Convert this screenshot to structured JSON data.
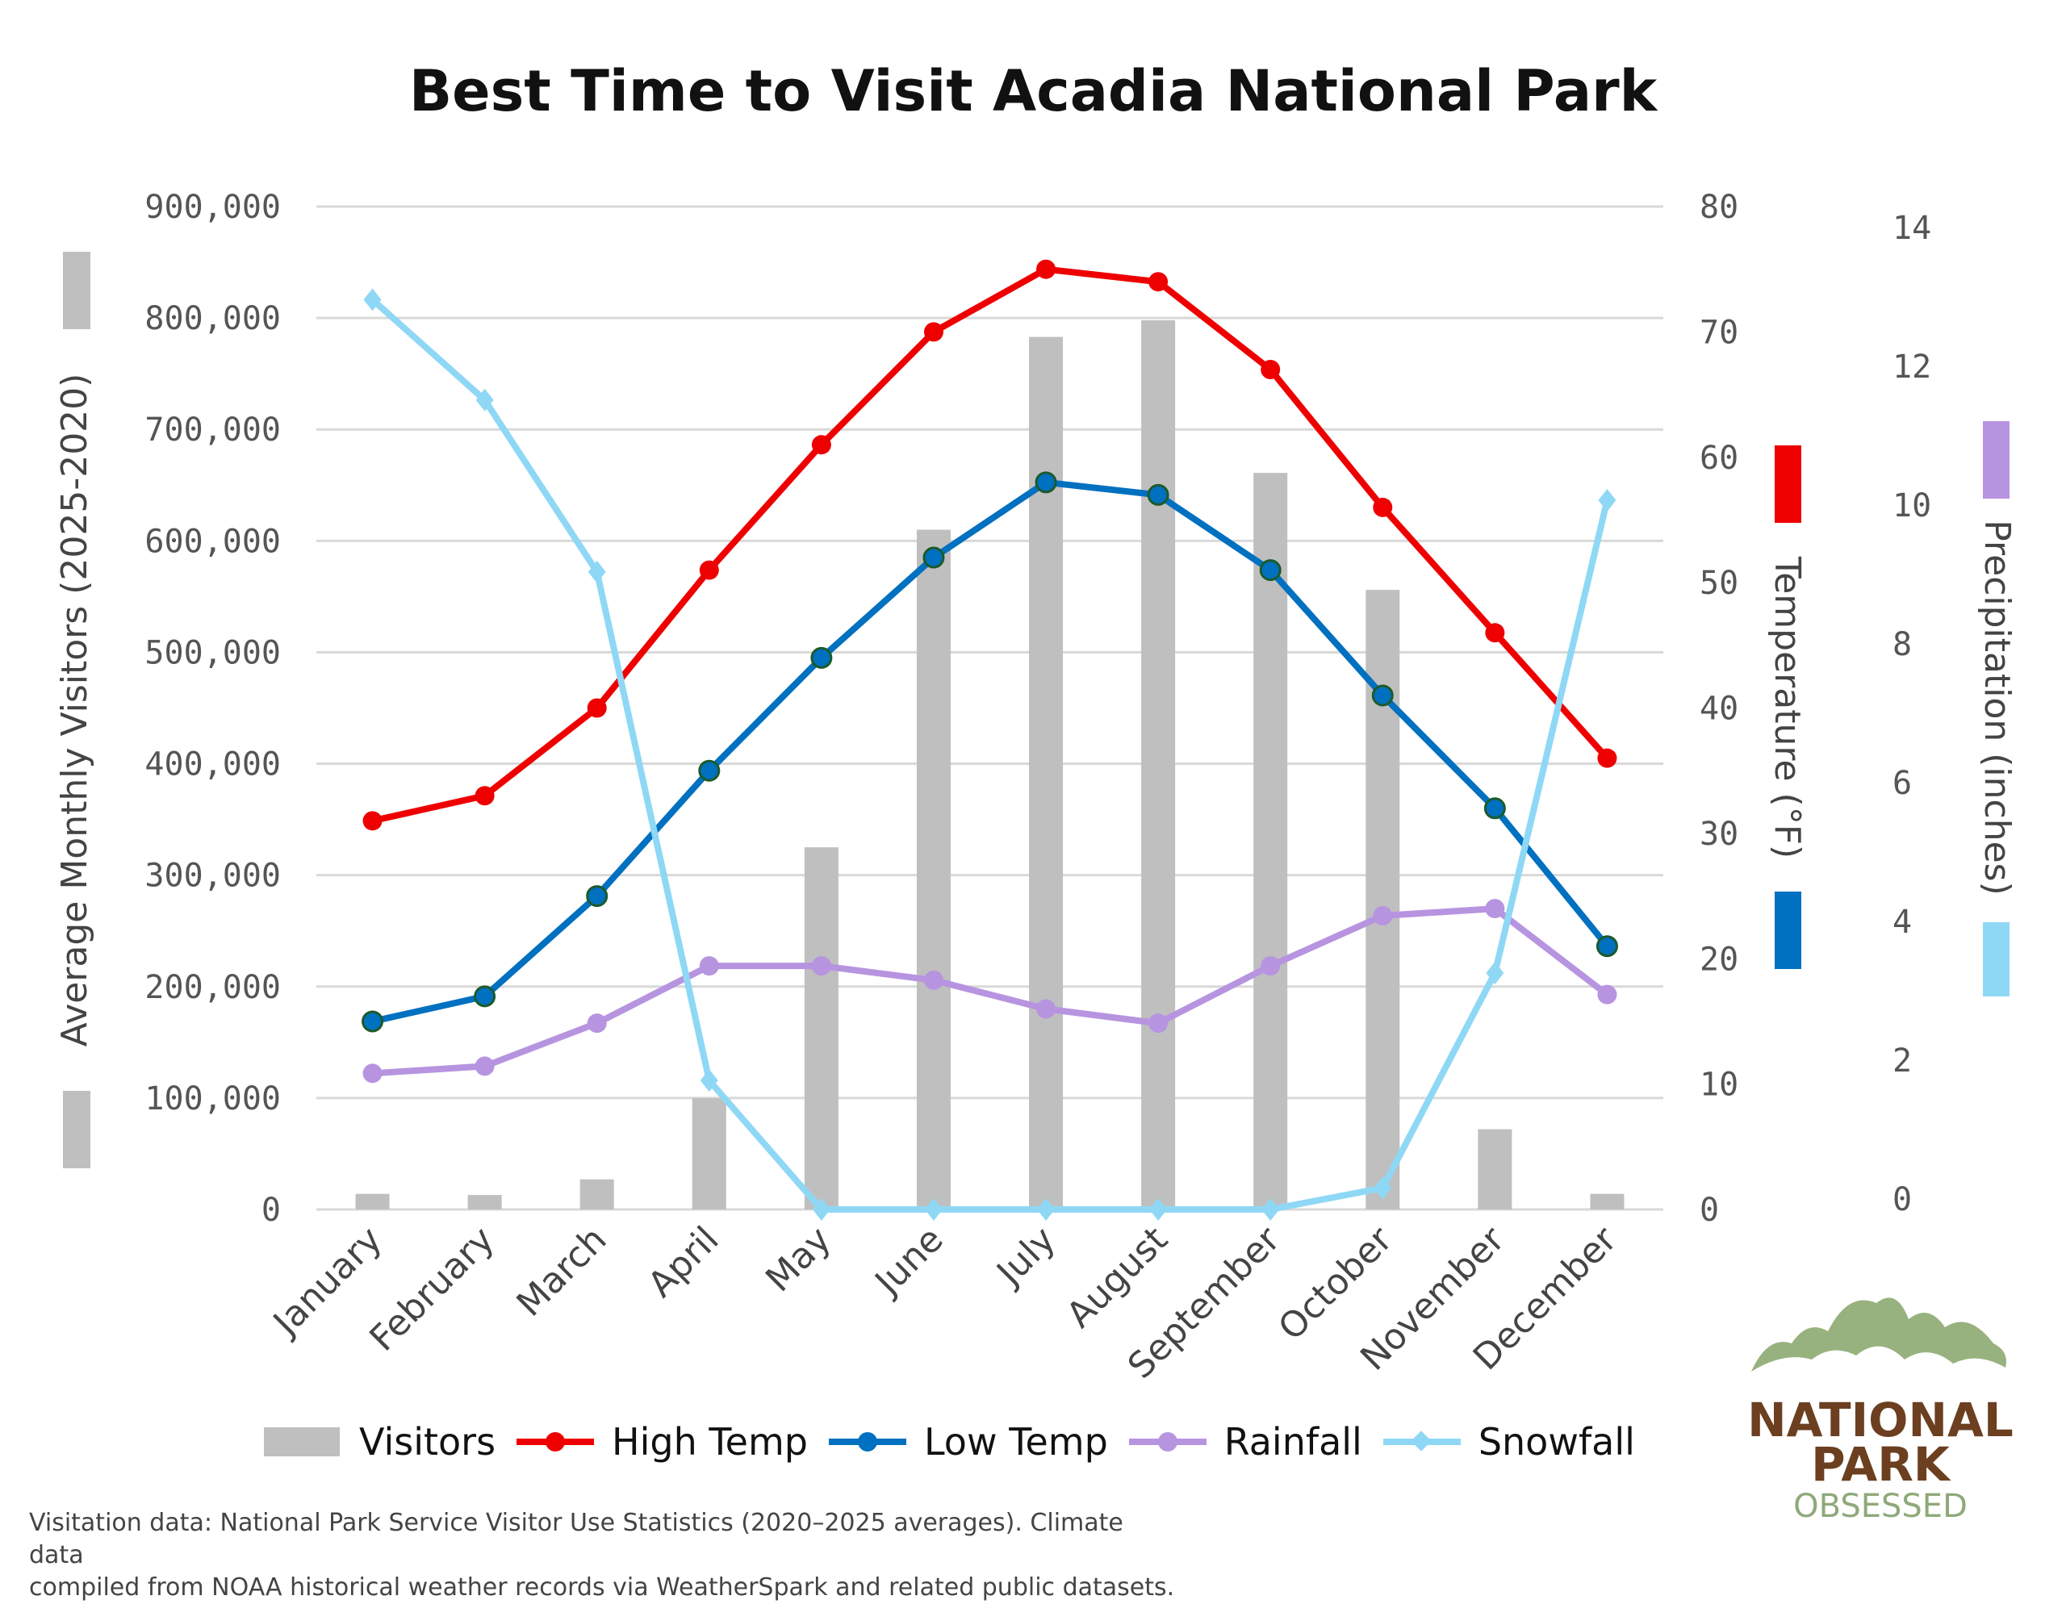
{
  "chart_data": {
    "type": "bar+line",
    "title": "Best Time to Visit Acadia National Park",
    "categories": [
      "January",
      "February",
      "March",
      "April",
      "May",
      "June",
      "July",
      "August",
      "September",
      "October",
      "November",
      "December"
    ],
    "y_left": {
      "label": "Average Monthly Visitors (2025-2020)",
      "range": [
        0,
        900000
      ],
      "ticks": [
        "0",
        "100,000",
        "200,000",
        "300,000",
        "400,000",
        "500,000",
        "600,000",
        "700,000",
        "800,000",
        "900,000"
      ]
    },
    "y_right_1": {
      "label": "Temperature (°F)",
      "range": [
        0,
        80
      ],
      "ticks": [
        "0",
        "10",
        "20",
        "30",
        "40",
        "50",
        "60",
        "70",
        "80"
      ]
    },
    "y_right_2": {
      "label": "Precipitation (inches)",
      "range": [
        0,
        14
      ],
      "ticks": [
        "0",
        "2",
        "4",
        "6",
        "8",
        "10",
        "12",
        "14"
      ]
    },
    "grid": true,
    "legend_position": "bottom",
    "series": [
      {
        "name": "Visitors",
        "type": "bar",
        "axis": "left",
        "color": "#bfbfbf",
        "values": [
          14000,
          13000,
          27000,
          100000,
          325000,
          610000,
          783000,
          798000,
          661000,
          556000,
          72000,
          14000
        ]
      },
      {
        "name": "High Temp",
        "type": "line",
        "axis": "temp",
        "color": "#ee0000",
        "marker": "circle",
        "values": [
          31,
          33,
          40,
          51,
          61,
          70,
          75,
          74,
          67,
          56,
          46,
          36
        ]
      },
      {
        "name": "Low Temp",
        "type": "line",
        "axis": "temp",
        "color": "#0070c0",
        "marker": "circle",
        "values": [
          15,
          17,
          25,
          35,
          44,
          52,
          58,
          57,
          51,
          41,
          32,
          21
        ]
      },
      {
        "name": "Rainfall",
        "type": "line",
        "axis": "precip",
        "color": "#b794e0",
        "marker": "circle",
        "values": [
          1.9,
          2.0,
          2.6,
          3.4,
          3.4,
          3.2,
          2.8,
          2.6,
          3.4,
          4.1,
          4.2,
          3.0
        ]
      },
      {
        "name": "Snowfall",
        "type": "line",
        "axis": "precip",
        "color": "#8fd8f5",
        "marker": "diamond",
        "values": [
          12.7,
          11.3,
          8.9,
          1.8,
          0,
          0,
          0,
          0,
          0,
          0.3,
          3.3,
          9.9
        ]
      }
    ]
  },
  "footnote": {
    "line1": "Visitation data: National Park Service Visitor Use Statistics (2020–2025 averages). Climate data",
    "line2": "compiled from NOAA historical weather records via WeatherSpark and related public datasets."
  },
  "logo": {
    "line1": "NATIONAL",
    "line2": "PARK",
    "line3": "OBSESSED",
    "brown": "#6b3f1f",
    "green": "#8fa97a"
  }
}
